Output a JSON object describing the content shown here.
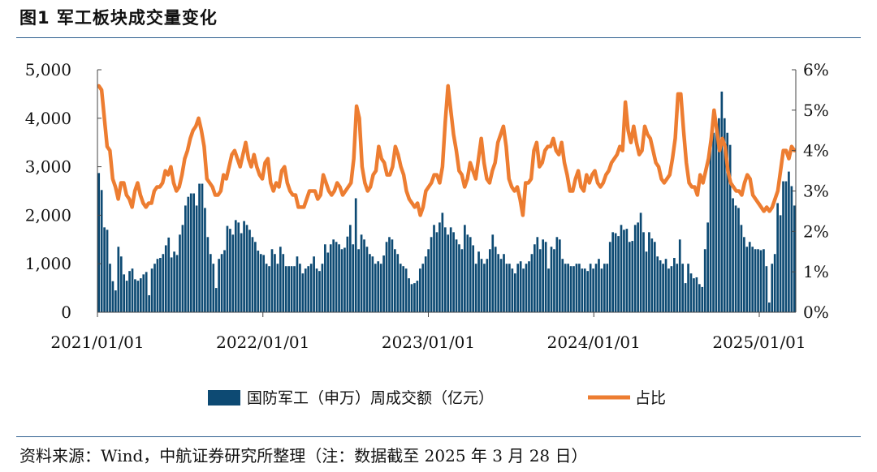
{
  "figure": {
    "title": "图1  军工板块成交量变化",
    "source": "资料来源：Wind，中航证券研究所整理（注：数据截至 2025 年 3 月 28 日）"
  },
  "colors": {
    "bar": "#0d4a73",
    "line": "#ed7d31",
    "rule": "#2f5f8f"
  },
  "chart_data": {
    "type": "bar+line",
    "x_tick_labels": [
      "2021/01/01",
      "2022/01/01",
      "2023/01/01",
      "2024/01/01",
      "2025/01/01"
    ],
    "left_axis": {
      "range": [
        0,
        5000
      ],
      "tick_labels": [
        "0",
        "1,000",
        "2,000",
        "3,000",
        "4,000",
        "5,000"
      ]
    },
    "right_axis": {
      "range": [
        0,
        6
      ],
      "unit": "%",
      "tick_labels": [
        "0%",
        "1%",
        "2%",
        "3%",
        "4%",
        "5%",
        "6%"
      ]
    },
    "grid": false,
    "legend_position": "bottom",
    "series": [
      {
        "name": "国防军工（申万）周成交额（亿元）",
        "type": "bar",
        "axis": "left",
        "values": [
          2870,
          2520,
          1750,
          1700,
          1000,
          640,
          450,
          1350,
          1150,
          780,
          650,
          850,
          900,
          680,
          650,
          700,
          780,
          830,
          350,
          900,
          1000,
          1100,
          1120,
          1200,
          1380,
          1540,
          1130,
          1250,
          1180,
          1600,
          1800,
          2200,
          2380,
          2450,
          2450,
          2200,
          2650,
          2650,
          2150,
          1550,
          1200,
          1000,
          500,
          1100,
          1200,
          1280,
          1780,
          1720,
          1600,
          1900,
          1850,
          1630,
          1880,
          1800,
          1700,
          1550,
          1450,
          1270,
          1200,
          1180,
          1000,
          950,
          1300,
          1200,
          1000,
          1350,
          1200,
          950,
          950,
          950,
          950,
          1150,
          1000,
          800,
          900,
          950,
          1000,
          1150,
          900,
          850,
          1000,
          1400,
          1230,
          1400,
          1500,
          1450,
          1400,
          1300,
          1330,
          1560,
          1800,
          1400,
          2350,
          1300,
          1600,
          1500,
          1350,
          1200,
          1150,
          1000,
          1050,
          1000,
          1170,
          1450,
          1550,
          1500,
          1300,
          1200,
          1000,
          950,
          900,
          700,
          580,
          600,
          650,
          900,
          1000,
          1150,
          1300,
          1550,
          1800,
          1650,
          1850,
          2050,
          1750,
          1600,
          1750,
          1650,
          1500,
          1400,
          1300,
          1800,
          1600,
          1550,
          1380,
          1000,
          1250,
          1100,
          1000,
          1100,
          1300,
          1600,
          1350,
          1200,
          1100,
          1200,
          1000,
          1000,
          900,
          800,
          1000,
          1050,
          900,
          1000,
          1050,
          1200,
          1400,
          1550,
          1300,
          1500,
          1450,
          900,
          1350,
          1300,
          1550,
          1500,
          1100,
          1000,
          1000,
          950,
          950,
          1000,
          1000,
          900,
          900,
          850,
          1000,
          900,
          1000,
          1100,
          900,
          1000,
          1000,
          1450,
          1650,
          1630,
          1570,
          1800,
          1700,
          1720,
          1450,
          1470,
          1800,
          1850,
          2050,
          1650,
          1250,
          1650,
          1520,
          1450,
          1150,
          1070,
          1000,
          1100,
          900,
          950,
          1120,
          1000,
          1500,
          1000,
          600,
          1000,
          800,
          700,
          720,
          580,
          520,
          1300,
          1850,
          3400,
          3700,
          3900,
          4000,
          4550,
          4000,
          3700,
          3450,
          2350,
          2200,
          2150,
          1800,
          1550,
          1350,
          1450,
          1350,
          1300,
          1300,
          1280,
          1300,
          950,
          200,
          1000,
          1200,
          2250,
          2000,
          2700,
          2700,
          2900,
          2600,
          2200
        ]
      },
      {
        "name": "占比",
        "type": "line",
        "axis": "right",
        "unit": "%",
        "values": [
          5.6,
          5.5,
          4.8,
          4.1,
          4.0,
          3.3,
          3.1,
          2.8,
          3.2,
          3.2,
          2.9,
          2.8,
          2.6,
          3.0,
          3.2,
          2.9,
          2.7,
          2.6,
          2.7,
          2.7,
          3.0,
          3.1,
          3.1,
          3.2,
          3.5,
          3.4,
          3.6,
          3.2,
          3.0,
          3.1,
          3.4,
          3.8,
          4.0,
          4.3,
          4.5,
          4.6,
          4.8,
          4.5,
          4.1,
          3.3,
          3.2,
          3.1,
          2.9,
          2.9,
          3.0,
          3.4,
          3.3,
          3.6,
          3.9,
          4.0,
          3.8,
          3.6,
          3.9,
          4.2,
          3.8,
          3.6,
          3.9,
          3.6,
          3.4,
          3.3,
          3.7,
          3.8,
          3.2,
          3.0,
          3.2,
          3.1,
          3.5,
          3.6,
          3.2,
          3.0,
          2.9,
          2.9,
          2.6,
          2.6,
          2.6,
          2.8,
          3.0,
          3.0,
          3.0,
          2.8,
          2.9,
          3.4,
          3.2,
          3.0,
          2.9,
          3.0,
          3.2,
          3.1,
          2.9,
          3.0,
          3.1,
          3.2,
          3.8,
          5.1,
          4.8,
          3.6,
          3.2,
          3.0,
          3.1,
          3.4,
          3.5,
          4.1,
          3.8,
          3.7,
          3.4,
          3.4,
          3.6,
          4.1,
          3.9,
          3.6,
          3.4,
          3.0,
          2.8,
          2.7,
          2.6,
          2.7,
          2.4,
          2.6,
          3.0,
          3.1,
          3.2,
          3.4,
          3.4,
          3.2,
          3.6,
          4.7,
          5.6,
          5.0,
          4.4,
          4.0,
          3.5,
          3.4,
          3.1,
          3.3,
          3.7,
          3.5,
          3.3,
          3.8,
          4.3,
          3.7,
          3.3,
          3.2,
          3.5,
          3.7,
          4.2,
          4.4,
          4.6,
          4.1,
          3.3,
          3.1,
          3.0,
          3.1,
          2.8,
          2.4,
          3.2,
          3.2,
          3.3,
          4.0,
          4.2,
          3.6,
          3.7,
          4.0,
          4.1,
          4.1,
          4.3,
          4.0,
          3.9,
          4.2,
          3.7,
          3.4,
          3.0,
          3.0,
          3.3,
          3.5,
          3.1,
          3.0,
          3.4,
          3.2,
          3.4,
          3.5,
          3.2,
          3.1,
          3.2,
          3.4,
          3.5,
          3.7,
          3.8,
          3.9,
          4.1,
          4.0,
          5.2,
          4.5,
          4.2,
          4.6,
          4.2,
          3.9,
          4.0,
          4.6,
          4.4,
          4.3,
          4.0,
          3.7,
          3.6,
          3.3,
          3.2,
          3.3,
          3.4,
          3.8,
          4.3,
          5.4,
          5.4,
          4.5,
          3.7,
          3.2,
          3.1,
          3.1,
          2.9,
          3.4,
          3.2,
          3.5,
          3.8,
          4.3,
          5.0,
          4.5,
          4.0,
          4.3,
          4.1,
          3.5,
          3.2,
          3.1,
          3.0,
          3.0,
          2.9,
          3.2,
          3.4,
          3.3,
          2.9,
          2.8,
          2.7,
          2.6,
          2.5,
          2.6,
          2.5,
          2.6,
          2.8,
          3.0,
          3.5,
          4.0,
          4.0,
          3.8,
          4.1,
          4.0
        ]
      }
    ]
  }
}
